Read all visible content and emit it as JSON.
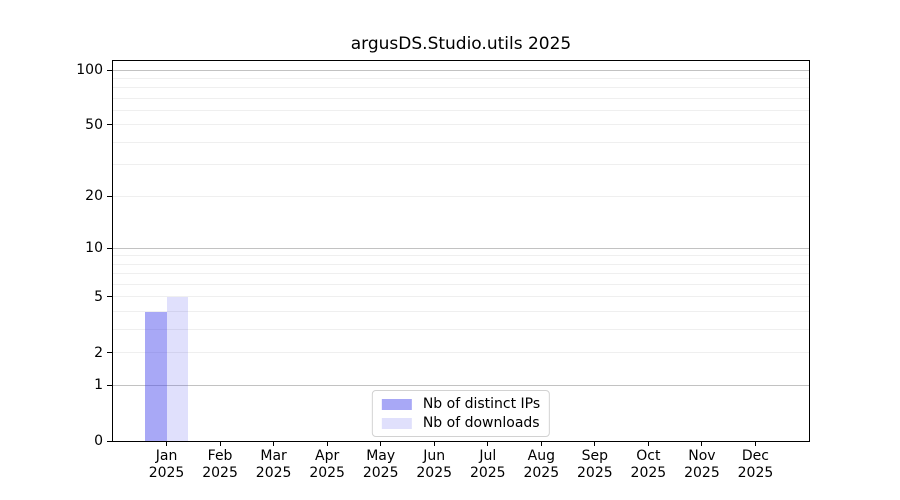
{
  "chart_data": {
    "type": "bar",
    "title": "argusDS.Studio.utils 2025",
    "x_axis": {
      "months": [
        "Jan",
        "Feb",
        "Mar",
        "Apr",
        "May",
        "Jun",
        "Jul",
        "Aug",
        "Sep",
        "Oct",
        "Nov",
        "Dec"
      ],
      "year": "2025"
    },
    "y_axis": {
      "scale": "log1p",
      "ticks": [
        0,
        1,
        2,
        5,
        10,
        20,
        50,
        100
      ],
      "range_top": 113,
      "grid_major": [
        1,
        10,
        100
      ],
      "grid_minor": [
        2,
        3,
        4,
        5,
        6,
        7,
        8,
        9,
        20,
        30,
        40,
        50,
        60,
        70,
        80,
        90
      ]
    },
    "legend": {
      "position": "lower center"
    },
    "series": [
      {
        "name": "Nb of distinct IPs",
        "color": "rgba(70,70,235,0.47)",
        "color_hex": "#a8a8f3",
        "values": [
          4,
          0,
          0,
          0,
          0,
          0,
          0,
          0,
          0,
          0,
          0,
          0
        ]
      },
      {
        "name": "Nb of downloads",
        "color": "rgba(70,70,235,0.17)",
        "color_hex": "#dbdbf9",
        "values": [
          5,
          0,
          0,
          0,
          0,
          0,
          0,
          0,
          0,
          0,
          0,
          0
        ]
      }
    ]
  }
}
